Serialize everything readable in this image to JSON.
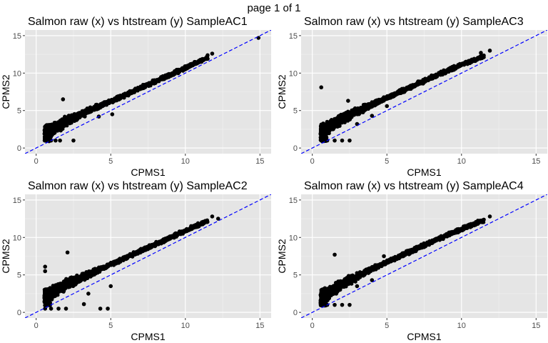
{
  "page_label": "page 1 of 1",
  "colors": {
    "panel_background": "#e5e5e5",
    "grid_major": "#ffffff",
    "points": "#000000",
    "reference_line": "#0000ff"
  },
  "chart_data": [
    {
      "type": "scatter",
      "title": "Salmon raw (x) vs htstream (y) SampleAC1",
      "xlabel": "CPMS1",
      "ylabel": "CPMS2",
      "xlim": [
        -0.75,
        15.75
      ],
      "ylim": [
        -0.75,
        15.75
      ],
      "xticks": [
        0,
        5,
        10,
        15
      ],
      "yticks": [
        0,
        5,
        10,
        15
      ],
      "grid": true,
      "reference_line": {
        "slope": 1,
        "intercept": 0,
        "style": "dashed",
        "color": "#0000ff"
      },
      "trend": {
        "x": [
          0.6,
          2,
          4,
          6,
          8,
          10,
          11.5
        ],
        "y": [
          1.9,
          3.6,
          5.4,
          7.1,
          8.9,
          10.7,
          12.1
        ]
      },
      "points": [
        [
          0.6,
          1.0
        ],
        [
          0.7,
          2.8
        ],
        [
          1.0,
          1.0
        ],
        [
          1.3,
          1.0
        ],
        [
          1.6,
          1.0
        ],
        [
          2.5,
          1.0
        ],
        [
          1.8,
          6.5
        ],
        [
          4.2,
          4.2
        ],
        [
          5.1,
          4.5
        ],
        [
          11.8,
          12.6
        ],
        [
          14.9,
          14.7
        ],
        [
          3.0,
          4.5
        ],
        [
          6.0,
          7.2
        ],
        [
          8.5,
          9.3
        ]
      ]
    },
    {
      "type": "scatter",
      "title": "Salmon raw (x) vs htstream (y) SampleAC3",
      "xlabel": "CPMS1",
      "ylabel": "CPMS2",
      "xlim": [
        -0.75,
        15.75
      ],
      "ylim": [
        -0.75,
        15.75
      ],
      "xticks": [
        0,
        5,
        10,
        15
      ],
      "yticks": [
        0,
        5,
        10,
        15
      ],
      "grid": true,
      "reference_line": {
        "slope": 1,
        "intercept": 0,
        "style": "dashed",
        "color": "#0000ff"
      },
      "trend": {
        "x": [
          0.6,
          2,
          4,
          6,
          8,
          10,
          11.5
        ],
        "y": [
          2.2,
          3.9,
          5.8,
          7.6,
          9.4,
          11.1,
          12.3
        ]
      },
      "points": [
        [
          0.6,
          1.0
        ],
        [
          1.0,
          1.0
        ],
        [
          1.5,
          1.0
        ],
        [
          2.0,
          1.0
        ],
        [
          2.5,
          1.0
        ],
        [
          0.6,
          8.1
        ],
        [
          2.4,
          6.3
        ],
        [
          3.0,
          3.2
        ],
        [
          4.0,
          4.3
        ],
        [
          5.0,
          5.6
        ],
        [
          11.3,
          12.7
        ],
        [
          11.9,
          13.0
        ],
        [
          6.5,
          7.9
        ],
        [
          9.0,
          10.2
        ]
      ]
    },
    {
      "type": "scatter",
      "title": "Salmon raw (x) vs htstream (y) SampleAC2",
      "xlabel": "CPMS1",
      "ylabel": "CPMS2",
      "xlim": [
        -0.75,
        15.75
      ],
      "ylim": [
        -0.75,
        15.75
      ],
      "xticks": [
        0,
        5,
        10,
        15
      ],
      "yticks": [
        0,
        5,
        10,
        15
      ],
      "grid": true,
      "reference_line": {
        "slope": 1,
        "intercept": 0,
        "style": "dashed",
        "color": "#0000ff"
      },
      "trend": {
        "x": [
          0.6,
          2,
          4,
          6,
          8,
          10,
          11.5
        ],
        "y": [
          2.0,
          3.7,
          5.5,
          7.3,
          9.1,
          10.9,
          12.2
        ]
      },
      "points": [
        [
          0.6,
          0.5
        ],
        [
          0.6,
          6.1
        ],
        [
          0.6,
          5.5
        ],
        [
          1.0,
          0.5
        ],
        [
          1.5,
          0.5
        ],
        [
          2.0,
          0.5
        ],
        [
          2.1,
          8.0
        ],
        [
          3.2,
          1.1
        ],
        [
          4.3,
          0.5
        ],
        [
          4.8,
          0.5
        ],
        [
          3.5,
          2.5
        ],
        [
          5.0,
          3.5
        ],
        [
          11.8,
          12.8
        ],
        [
          12.2,
          12.5
        ],
        [
          6.0,
          7.4
        ],
        [
          8.5,
          9.6
        ]
      ]
    },
    {
      "type": "scatter",
      "title": "Salmon raw (x) vs htstream (y) SampleAC4",
      "xlabel": "CPMS1",
      "ylabel": "CPMS2",
      "xlim": [
        -0.75,
        15.75
      ],
      "ylim": [
        -0.75,
        15.75
      ],
      "xticks": [
        0,
        5,
        10,
        15
      ],
      "yticks": [
        0,
        5,
        10,
        15
      ],
      "grid": true,
      "reference_line": {
        "slope": 1,
        "intercept": 0,
        "style": "dashed",
        "color": "#0000ff"
      },
      "trend": {
        "x": [
          0.6,
          2,
          4,
          6,
          8,
          10,
          11.5
        ],
        "y": [
          1.9,
          3.8,
          5.8,
          7.6,
          9.4,
          11.1,
          12.3
        ]
      },
      "points": [
        [
          0.6,
          1.0
        ],
        [
          1.0,
          1.0
        ],
        [
          1.5,
          1.0
        ],
        [
          2.0,
          1.0
        ],
        [
          2.5,
          1.0
        ],
        [
          1.5,
          7.7
        ],
        [
          4.8,
          7.5
        ],
        [
          3.0,
          3.5
        ],
        [
          4.0,
          4.3
        ],
        [
          11.9,
          12.8
        ],
        [
          6.5,
          7.8
        ],
        [
          9.0,
          10.3
        ]
      ]
    }
  ]
}
